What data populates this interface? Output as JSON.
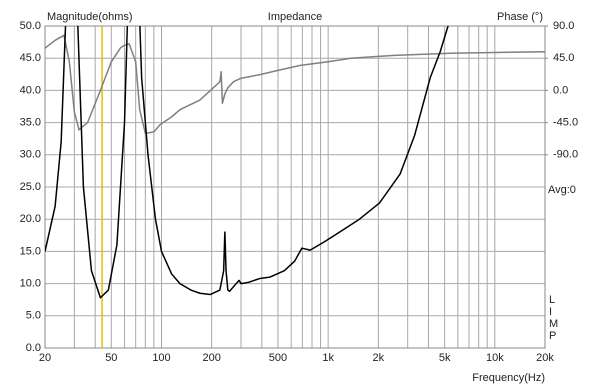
{
  "chart_data": {
    "type": "line",
    "title": "Impedance",
    "y_label": "Magnitude(ohms)",
    "y2_label": "Phase (°)",
    "x_label": "Frequency(Hz)",
    "average_label": "Avg:0",
    "side_letters": [
      "L",
      "I",
      "M",
      "P"
    ],
    "x_scale": "log",
    "grid": true,
    "xlim": [
      20,
      20000
    ],
    "xticks": [
      20,
      50,
      100,
      200,
      500,
      {
        "value": 1000,
        "label": "1k"
      },
      {
        "value": 2000,
        "label": "2k"
      },
      {
        "value": 5000,
        "label": "5k"
      },
      {
        "value": 10000,
        "label": "10k"
      },
      {
        "value": 20000,
        "label": "20k"
      }
    ],
    "x_minor_gridlines": [
      30,
      40,
      60,
      70,
      80,
      90,
      300,
      400,
      600,
      700,
      800,
      900,
      3000,
      4000,
      6000,
      7000,
      8000,
      9000
    ],
    "ylim": [
      0,
      50
    ],
    "yticks": [
      {
        "value": 0,
        "label": "0.0"
      },
      {
        "value": 5,
        "label": "5.0"
      },
      {
        "value": 10,
        "label": "10.0"
      },
      {
        "value": 15,
        "label": "15.0"
      },
      {
        "value": 20,
        "label": "20.0"
      },
      {
        "value": 25,
        "label": "25.0"
      },
      {
        "value": 30,
        "label": "30.0"
      },
      {
        "value": 35,
        "label": "35.0"
      },
      {
        "value": 40,
        "label": "40.0"
      },
      {
        "value": 45,
        "label": "45.0"
      },
      {
        "value": 50,
        "label": "50.0"
      }
    ],
    "y2lim": [
      -360,
      90
    ],
    "y2ticks": [
      {
        "value": 90,
        "label": "90.0"
      },
      {
        "value": 45,
        "label": "45.0"
      },
      {
        "value": 0,
        "label": "0.0"
      },
      {
        "value": -45,
        "label": "-45.0"
      },
      {
        "value": -90,
        "label": "-90.0"
      }
    ],
    "marker_frequency": 44,
    "marker_color": "#e0c000",
    "series": [
      {
        "name": "Magnitude",
        "color": "#000000",
        "x": [
          20,
          23,
          25,
          27,
          29,
          31,
          34,
          38,
          43,
          48,
          54,
          60,
          64,
          68,
          72,
          76,
          83,
          92,
          100,
          115,
          129,
          150,
          170,
          196,
          224,
          236,
          240,
          244,
          250,
          256,
          270,
          292,
          300,
          333,
          390,
          446,
          546,
          630,
          695,
          780,
          950,
          1170,
          1540,
          2030,
          2700,
          3300,
          4100,
          4700,
          5240,
          5600
        ],
        "values": [
          15,
          22,
          32,
          55,
          80,
          55,
          25,
          12,
          7.8,
          9,
          16,
          35,
          60,
          70,
          60,
          42,
          30,
          20,
          15,
          11.5,
          10,
          9,
          8.5,
          8.3,
          9,
          12,
          18,
          12,
          9,
          8.8,
          9.5,
          10.5,
          10,
          10.2,
          10.8,
          11,
          12,
          13.5,
          15.5,
          15.2,
          16.5,
          18,
          20,
          22.5,
          27,
          33,
          42,
          46,
          50,
          53
        ]
      },
      {
        "name": "Phase",
        "color": "#808080",
        "axis": "y2",
        "x": [
          20,
          23,
          26,
          28,
          30,
          32,
          36,
          43,
          50,
          57,
          60,
          64,
          70,
          74,
          80,
          90,
          98,
          115,
          129,
          170,
          224,
          228,
          232,
          240,
          250,
          270,
          300,
          390,
          500,
          680,
          1000,
          1370,
          2500,
          5400,
          10000,
          20000
        ],
        "values": [
          59,
          70,
          77,
          40,
          -30,
          -55,
          -45,
          0,
          40,
          60,
          63,
          65,
          40,
          -27,
          -60,
          -58,
          -48,
          -37,
          -27,
          -13.5,
          12,
          26,
          -18,
          -5,
          3.6,
          12,
          17,
          22,
          28,
          35,
          40,
          45,
          49,
          52,
          53,
          54
        ]
      }
    ]
  }
}
